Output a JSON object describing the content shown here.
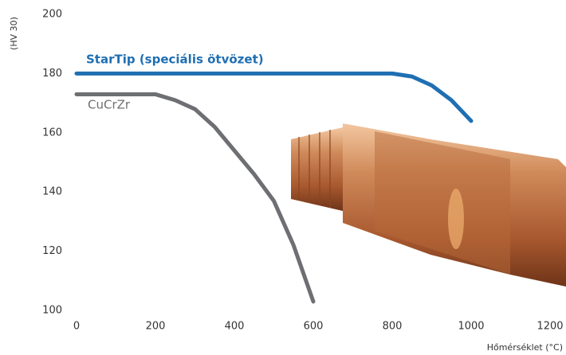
{
  "chart_data": {
    "type": "line",
    "y_label": "(HV 30)",
    "x_label": "Hőmérséklet (°C)",
    "series": [
      {
        "name": "StarTip (speciális ötvözet)",
        "color": "#1f6fb2",
        "x": [
          0,
          200,
          400,
          600,
          800,
          850,
          900,
          950,
          1000
        ],
        "values": [
          180,
          180,
          180,
          180,
          180,
          179,
          176,
          171,
          164
        ]
      },
      {
        "name": "CuCrZr",
        "color": "#6d6f72",
        "x": [
          0,
          200,
          250,
          300,
          350,
          400,
          450,
          500,
          550,
          600
        ],
        "values": [
          173,
          173,
          171,
          168,
          162,
          154,
          146,
          137,
          122,
          103
        ]
      }
    ],
    "xlim": [
      0,
      1200
    ],
    "xticks": [
      0,
      200,
      400,
      600,
      800,
      1000,
      1200
    ],
    "ylim": [
      100,
      200
    ],
    "yticks": [
      100,
      120,
      140,
      160,
      180,
      200
    ],
    "grid": false
  }
}
